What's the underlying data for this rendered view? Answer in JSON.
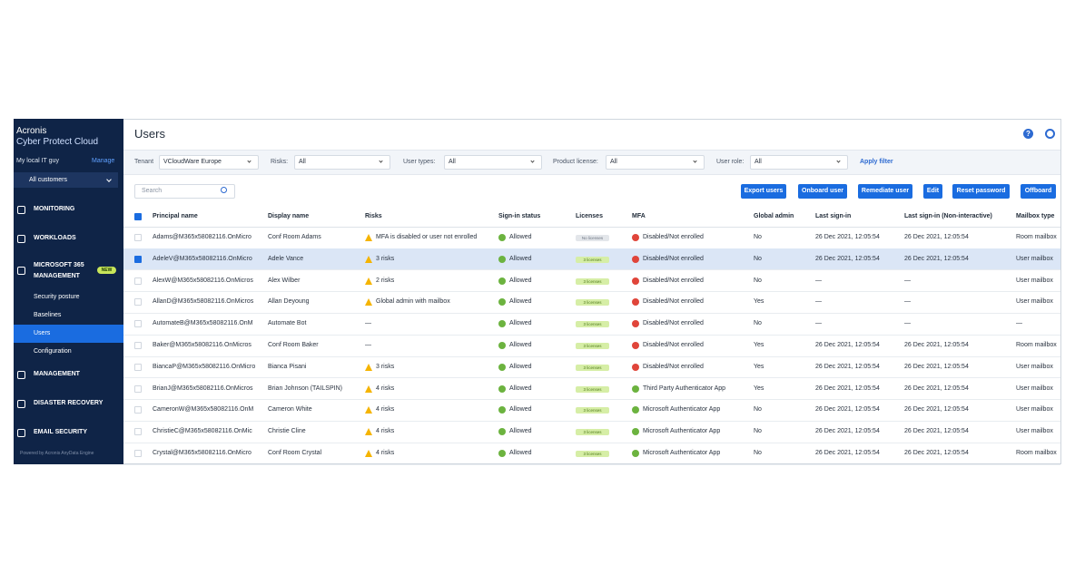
{
  "sidebar": {
    "brand": "Acronis",
    "product": "Cyber Protect Cloud",
    "tenant": "My local IT guy",
    "manage": "Manage",
    "customers": "All customers",
    "nav_top": [
      "MONITORING",
      "WORKLOADS"
    ],
    "ms365": {
      "label": "MICROSOFT 365 MANAGEMENT",
      "badge": "NEW",
      "items": [
        "Security posture",
        "Baselines",
        "Users",
        "Configuration"
      ]
    },
    "nav_bottom": [
      "MANAGEMENT",
      "DISASTER RECOVERY",
      "EMAIL SECURITY"
    ],
    "footer": "Powered by Acronis AnyData Engine"
  },
  "header": {
    "title": "Users"
  },
  "filters": [
    {
      "label": "Tenant",
      "value": "VCloudWare Europe"
    },
    {
      "label": "Risks:",
      "value": "All"
    },
    {
      "label": "User types:",
      "value": "All"
    },
    {
      "label": "Product license:",
      "value": "All"
    },
    {
      "label": "User role:",
      "value": "All"
    }
  ],
  "apply_filter": "Apply filter",
  "search": "Search",
  "buttons": [
    "Export users",
    "Onboard user",
    "Remediate user",
    "Edit",
    "Reset password",
    "Offboard"
  ],
  "table": {
    "columns": [
      "Principal name",
      "Display name",
      "Risks",
      "Sign-in status",
      "Licenses",
      "MFA",
      "Global admin",
      "Last sign-in",
      "Last sign-in (Non-interactive)",
      "Mailbox type"
    ],
    "rows": [
      [
        "Adams@M365x58082116.OnMicro",
        "Conf Room Adams",
        "MFA is disabled or user not enrolled",
        "Allowed",
        "No licenses",
        "Disabled/Not enrolled",
        "No",
        "26 Dec 2021, 12:05:54",
        "26 Dec 2021, 12:05:54",
        "Room mailbox"
      ],
      [
        "AdeleV@M365x58082116.OnMicro",
        "Adele Vance",
        "3 risks",
        "Allowed",
        "3 licenses",
        "Disabled/Not enrolled",
        "No",
        "26 Dec 2021, 12:05:54",
        "26 Dec 2021, 12:05:54",
        "User mailbox"
      ],
      [
        "AlexW@M365x58082116.OnMicros",
        "Alex Wilber",
        "2 risks",
        "Allowed",
        "3 licenses",
        "Disabled/Not enrolled",
        "No",
        "—",
        "—",
        "User mailbox"
      ],
      [
        "AllanD@M365x58082116.OnMicros",
        "Allan Deyoung",
        "Global admin with mailbox",
        "Allowed",
        "3 licenses",
        "Disabled/Not enrolled",
        "Yes",
        "—",
        "—",
        "User mailbox"
      ],
      [
        "AutomateB@M365x58082116.OnM",
        "Automate Bot",
        "—",
        "Allowed",
        "3 licenses",
        "Disabled/Not enrolled",
        "No",
        "—",
        "—",
        "—"
      ],
      [
        "Baker@M365x58082116.OnMicros",
        "Conf Room Baker",
        "—",
        "Allowed",
        "3 licenses",
        "Disabled/Not enrolled",
        "Yes",
        "26 Dec 2021, 12:05:54",
        "26 Dec 2021, 12:05:54",
        "Room mailbox"
      ],
      [
        "BiancaP@M365x58082116.OnMicro",
        "Bianca Pisani",
        "3 risks",
        "Allowed",
        "3 licenses",
        "Disabled/Not enrolled",
        "Yes",
        "26 Dec 2021, 12:05:54",
        "26 Dec 2021, 12:05:54",
        "User mailbox"
      ],
      [
        "BrianJ@M365x58082116.OnMicros",
        "Brian Johnson (TAILSPIN)",
        "4 risks",
        "Allowed",
        "3 licenses",
        "Third Party Authenticator App",
        "Yes",
        "26 Dec 2021, 12:05:54",
        "26 Dec 2021, 12:05:54",
        "User mailbox"
      ],
      [
        "CameronW@M365x58082116.OnM",
        "Cameron White",
        "4 risks",
        "Allowed",
        "3 licenses",
        "Microsoft Authenticator App",
        "No",
        "26 Dec 2021, 12:05:54",
        "26 Dec 2021, 12:05:54",
        "User mailbox"
      ],
      [
        "ChristieC@M365x58082116.OnMic",
        "Christie Cline",
        "4 risks",
        "Allowed",
        "3 licenses",
        "Microsoft Authenticator App",
        "No",
        "26 Dec 2021, 12:05:54",
        "26 Dec 2021, 12:05:54",
        "User mailbox"
      ],
      [
        "Crystal@M365x58082116.OnMicro",
        "Conf Room Crystal",
        "4 risks",
        "Allowed",
        "3 licenses",
        "Microsoft Authenticator App",
        "No",
        "26 Dec 2021, 12:05:54",
        "26 Dec 2021, 12:05:54",
        "Room mailbox"
      ]
    ]
  }
}
